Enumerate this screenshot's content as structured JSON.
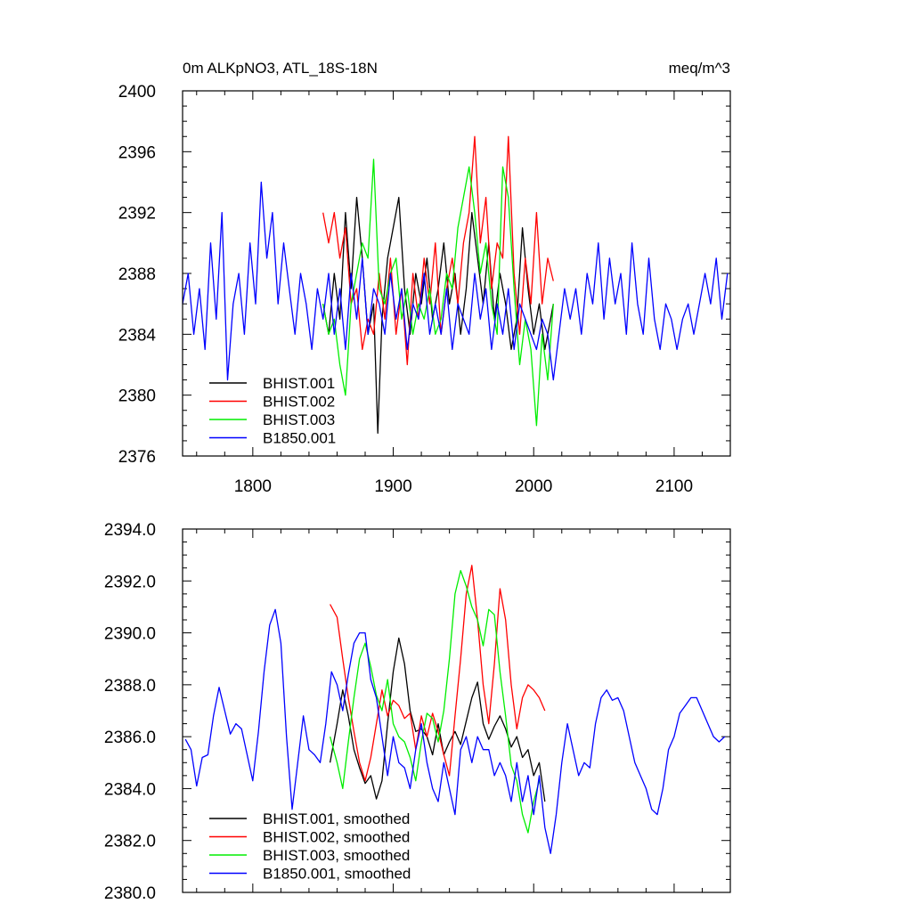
{
  "chart_data": [
    {
      "type": "line",
      "title_left": "0m ALKpNO3, ATL_18S-18N",
      "title_right": "meq/m^3",
      "xlim": [
        1750,
        2140
      ],
      "ylim": [
        2376,
        2400
      ],
      "xticks": [
        1800,
        1900,
        2000,
        2100
      ],
      "yticks": [
        2376,
        2380,
        2384,
        2388,
        2392,
        2396,
        2400
      ],
      "ytick_labels": [
        "2376",
        "2380",
        "2384",
        "2388",
        "2392",
        "2396",
        "2400"
      ],
      "grid": false,
      "legend_position": "bottom-left",
      "series": [
        {
          "name": "BHIST.001",
          "color": "#000000",
          "x": [
            1850,
            1854,
            1858,
            1862,
            1866,
            1870,
            1874,
            1878,
            1882,
            1886,
            1889,
            1892,
            1896,
            1900,
            1904,
            1908,
            1912,
            1916,
            1920,
            1924,
            1928,
            1932,
            1936,
            1940,
            1944,
            1948,
            1952,
            1956,
            1960,
            1964,
            1968,
            1972,
            1976,
            1980,
            1984,
            1988,
            1992,
            1996,
            2000,
            2004,
            2008,
            2012,
            2014
          ],
          "values": [
            2386,
            2384,
            2388,
            2385,
            2392,
            2387,
            2393,
            2389,
            2384,
            2386,
            2377.5,
            2385,
            2389,
            2391,
            2393,
            2387,
            2384,
            2388,
            2386,
            2389,
            2385,
            2387,
            2390,
            2386,
            2388,
            2384,
            2387,
            2392,
            2389,
            2386,
            2390,
            2385,
            2388,
            2386,
            2383,
            2385,
            2391,
            2387,
            2384,
            2386,
            2383,
            2385,
            2386
          ]
        },
        {
          "name": "BHIST.002",
          "color": "#ff0000",
          "x": [
            1850,
            1854,
            1858,
            1862,
            1866,
            1870,
            1874,
            1878,
            1882,
            1886,
            1890,
            1894,
            1898,
            1902,
            1906,
            1910,
            1914,
            1918,
            1922,
            1926,
            1930,
            1934,
            1938,
            1942,
            1946,
            1950,
            1954,
            1958,
            1962,
            1966,
            1970,
            1974,
            1978,
            1982,
            1986,
            1990,
            1994,
            1998,
            2002,
            2006,
            2010,
            2014
          ],
          "values": [
            2392,
            2390,
            2392,
            2389,
            2391,
            2386,
            2387,
            2383,
            2385,
            2384,
            2388,
            2385,
            2389,
            2384,
            2387,
            2382,
            2388,
            2385,
            2389,
            2386,
            2390,
            2384,
            2387,
            2389,
            2386,
            2390,
            2392,
            2397,
            2390,
            2393,
            2387,
            2390,
            2389,
            2397,
            2388,
            2384,
            2389,
            2386,
            2392,
            2386,
            2389,
            2387.5
          ]
        },
        {
          "name": "BHIST.003",
          "color": "#00ee00",
          "x": [
            1850,
            1854,
            1858,
            1862,
            1866,
            1870,
            1874,
            1878,
            1882,
            1886,
            1890,
            1894,
            1898,
            1902,
            1906,
            1910,
            1914,
            1918,
            1922,
            1926,
            1930,
            1934,
            1938,
            1942,
            1946,
            1950,
            1954,
            1958,
            1962,
            1966,
            1970,
            1974,
            1978,
            1982,
            1986,
            1990,
            1994,
            1998,
            2002,
            2006,
            2010,
            2014
          ],
          "values": [
            2386,
            2384,
            2385,
            2382,
            2380,
            2386,
            2388,
            2390,
            2389,
            2395.5,
            2387,
            2386,
            2388,
            2389,
            2385,
            2387,
            2384,
            2386,
            2385,
            2387,
            2384,
            2385,
            2388,
            2387,
            2391,
            2393,
            2395,
            2392,
            2388,
            2390,
            2386,
            2384,
            2395,
            2393,
            2387,
            2382,
            2385,
            2383,
            2378,
            2384,
            2381,
            2386
          ]
        },
        {
          "name": "B1850.001",
          "color": "#0000ff",
          "x": [
            1750,
            1754,
            1758,
            1762,
            1766,
            1770,
            1774,
            1778,
            1782,
            1786,
            1790,
            1794,
            1798,
            1802,
            1806,
            1810,
            1814,
            1818,
            1822,
            1826,
            1830,
            1834,
            1838,
            1842,
            1846,
            1850,
            1854,
            1858,
            1862,
            1866,
            1870,
            1874,
            1878,
            1882,
            1886,
            1890,
            1894,
            1898,
            1902,
            1906,
            1910,
            1914,
            1918,
            1922,
            1926,
            1930,
            1934,
            1938,
            1942,
            1946,
            1950,
            1954,
            1958,
            1962,
            1966,
            1970,
            1974,
            1978,
            1982,
            1986,
            1990,
            1994,
            1998,
            2002,
            2006,
            2010,
            2014,
            2018,
            2022,
            2026,
            2030,
            2034,
            2038,
            2042,
            2046,
            2050,
            2054,
            2058,
            2062,
            2066,
            2070,
            2074,
            2078,
            2082,
            2086,
            2090,
            2094,
            2098,
            2102,
            2106,
            2110,
            2114,
            2118,
            2122,
            2126,
            2130,
            2134,
            2138
          ],
          "values": [
            2386,
            2388,
            2384,
            2387,
            2383,
            2390,
            2385,
            2392,
            2381,
            2386,
            2388,
            2384,
            2390,
            2386,
            2394,
            2389,
            2392,
            2386,
            2390,
            2387,
            2384,
            2388,
            2386,
            2383,
            2387,
            2385,
            2388,
            2384,
            2387,
            2383,
            2388,
            2385,
            2389,
            2384,
            2387,
            2386,
            2384,
            2388,
            2385,
            2387,
            2383,
            2386,
            2385,
            2388,
            2384,
            2386,
            2384,
            2387,
            2383,
            2386,
            2385,
            2384,
            2388,
            2385,
            2387,
            2383,
            2386,
            2384,
            2387,
            2383,
            2386,
            2385,
            2384,
            2383,
            2385,
            2384,
            2381,
            2384,
            2387,
            2385,
            2387,
            2384,
            2388,
            2386,
            2390,
            2385,
            2389,
            2386,
            2388,
            2384,
            2390,
            2386,
            2384,
            2389,
            2385,
            2383,
            2386,
            2385,
            2383,
            2385,
            2386,
            2384,
            2386,
            2388,
            2386,
            2389,
            2385,
            2388
          ]
        }
      ]
    },
    {
      "type": "line",
      "xlim": [
        1750,
        2140
      ],
      "ylim": [
        2380,
        2394
      ],
      "xticks": [
        1800,
        1900,
        2000,
        2100
      ],
      "yticks": [
        2380,
        2382,
        2384,
        2386,
        2388,
        2390,
        2392,
        2394
      ],
      "ytick_labels": [
        "2380.0",
        "2382.0",
        "2384.0",
        "2386.0",
        "2388.0",
        "2390.0",
        "2392.0",
        "2394.0"
      ],
      "grid": false,
      "legend_position": "bottom-left",
      "series": [
        {
          "name": "BHIST.001, smoothed",
          "color": "#000000",
          "x": [
            1855,
            1860,
            1864,
            1868,
            1872,
            1876,
            1880,
            1884,
            1888,
            1892,
            1896,
            1900,
            1904,
            1908,
            1912,
            1916,
            1920,
            1924,
            1928,
            1932,
            1936,
            1940,
            1944,
            1948,
            1952,
            1956,
            1960,
            1964,
            1968,
            1972,
            1976,
            1980,
            1984,
            1988,
            1992,
            1996,
            2000,
            2004,
            2008
          ],
          "values": [
            2385.0,
            2386.5,
            2387.8,
            2386.8,
            2385.5,
            2384.8,
            2384.2,
            2384.5,
            2383.6,
            2384.3,
            2386.5,
            2388.5,
            2389.8,
            2388.8,
            2387.0,
            2386.2,
            2386.3,
            2386.0,
            2385.3,
            2386.5,
            2385.3,
            2385.8,
            2386.2,
            2385.7,
            2386.6,
            2387.5,
            2388.1,
            2386.5,
            2385.9,
            2386.4,
            2386.8,
            2386.3,
            2385.6,
            2386.0,
            2385.2,
            2385.5,
            2384.5,
            2385.0,
            2383.5
          ]
        },
        {
          "name": "BHIST.002, smoothed",
          "color": "#ff0000",
          "x": [
            1855,
            1860,
            1864,
            1868,
            1872,
            1876,
            1880,
            1884,
            1888,
            1892,
            1896,
            1900,
            1904,
            1908,
            1912,
            1916,
            1920,
            1924,
            1928,
            1932,
            1936,
            1940,
            1944,
            1948,
            1952,
            1956,
            1960,
            1964,
            1968,
            1972,
            1976,
            1980,
            1984,
            1988,
            1992,
            1996,
            2000,
            2004,
            2008
          ],
          "values": [
            2391.1,
            2390.6,
            2389.0,
            2387.5,
            2386.2,
            2385.0,
            2384.3,
            2385.2,
            2386.5,
            2387.8,
            2386.8,
            2387.4,
            2387.2,
            2386.7,
            2386.9,
            2385.5,
            2386.8,
            2386.0,
            2386.9,
            2386.2,
            2385.3,
            2384.5,
            2386.8,
            2389.0,
            2391.5,
            2392.6,
            2390.5,
            2388.0,
            2386.5,
            2388.8,
            2391.7,
            2390.5,
            2388.0,
            2386.3,
            2387.5,
            2388.0,
            2387.8,
            2387.5,
            2387.0
          ]
        },
        {
          "name": "BHIST.003, smoothed",
          "color": "#00ee00",
          "x": [
            1855,
            1860,
            1864,
            1868,
            1872,
            1876,
            1880,
            1884,
            1888,
            1892,
            1896,
            1900,
            1904,
            1908,
            1912,
            1916,
            1920,
            1924,
            1928,
            1932,
            1936,
            1940,
            1944,
            1948,
            1952,
            1956,
            1960,
            1964,
            1968,
            1972,
            1976,
            1980,
            1984,
            1988,
            1992,
            1996,
            2000,
            2004
          ],
          "values": [
            2386.0,
            2385.0,
            2384.0,
            2385.8,
            2387.5,
            2389.0,
            2389.6,
            2388.7,
            2387.6,
            2387.0,
            2388.2,
            2386.5,
            2386.0,
            2385.8,
            2385.2,
            2384.3,
            2385.8,
            2386.9,
            2386.7,
            2385.8,
            2387.0,
            2389.0,
            2391.5,
            2392.4,
            2391.8,
            2391.0,
            2390.5,
            2389.5,
            2390.9,
            2390.7,
            2388.5,
            2386.8,
            2384.9,
            2384.3,
            2383.0,
            2382.3,
            2383.5,
            2384.3
          ]
        },
        {
          "name": "B1850.001, smoothed",
          "color": "#0000ff",
          "x": [
            1752,
            1756,
            1760,
            1764,
            1768,
            1772,
            1776,
            1780,
            1784,
            1788,
            1792,
            1796,
            1800,
            1804,
            1808,
            1812,
            1816,
            1820,
            1824,
            1828,
            1832,
            1836,
            1840,
            1844,
            1848,
            1852,
            1856,
            1860,
            1864,
            1868,
            1872,
            1876,
            1880,
            1884,
            1888,
            1892,
            1896,
            1900,
            1904,
            1908,
            1912,
            1916,
            1920,
            1924,
            1928,
            1932,
            1936,
            1940,
            1944,
            1948,
            1952,
            1956,
            1960,
            1964,
            1968,
            1972,
            1976,
            1980,
            1984,
            1988,
            1992,
            1996,
            2000,
            2004,
            2008,
            2012,
            2016,
            2020,
            2024,
            2028,
            2032,
            2036,
            2040,
            2044,
            2048,
            2052,
            2056,
            2060,
            2064,
            2068,
            2072,
            2076,
            2080,
            2084,
            2088,
            2092,
            2096,
            2100,
            2104,
            2108,
            2112,
            2116,
            2120,
            2124,
            2128,
            2132,
            2136
          ],
          "values": [
            2385.9,
            2385.5,
            2384.1,
            2385.2,
            2385.3,
            2386.8,
            2387.9,
            2387.0,
            2386.1,
            2386.5,
            2386.3,
            2385.3,
            2384.3,
            2386.2,
            2388.5,
            2390.3,
            2390.9,
            2389.6,
            2386.0,
            2383.2,
            2385.0,
            2386.8,
            2385.5,
            2385.3,
            2385.0,
            2386.5,
            2388.5,
            2388.0,
            2387.0,
            2388.4,
            2389.6,
            2390.0,
            2390.0,
            2388.2,
            2387.5,
            2386.0,
            2384.5,
            2386.0,
            2385.0,
            2384.8,
            2384.0,
            2385.5,
            2386.5,
            2385.0,
            2384.0,
            2383.5,
            2385.0,
            2384.0,
            2383.0,
            2385.5,
            2386.0,
            2385.0,
            2386.0,
            2385.5,
            2385.5,
            2384.5,
            2385.0,
            2384.5,
            2383.5,
            2385.0,
            2383.5,
            2384.5,
            2383.0,
            2384.5,
            2382.5,
            2381.5,
            2383.0,
            2385.0,
            2386.5,
            2385.5,
            2384.5,
            2385.0,
            2384.8,
            2386.5,
            2387.5,
            2387.8,
            2387.4,
            2387.5,
            2387.0,
            2386.0,
            2385.0,
            2384.5,
            2384.0,
            2383.2,
            2383.0,
            2384.0,
            2385.5,
            2386.0,
            2386.9,
            2387.2,
            2387.5,
            2387.5,
            2387.0,
            2386.5,
            2386.0,
            2385.8,
            2386.0
          ]
        }
      ]
    }
  ]
}
